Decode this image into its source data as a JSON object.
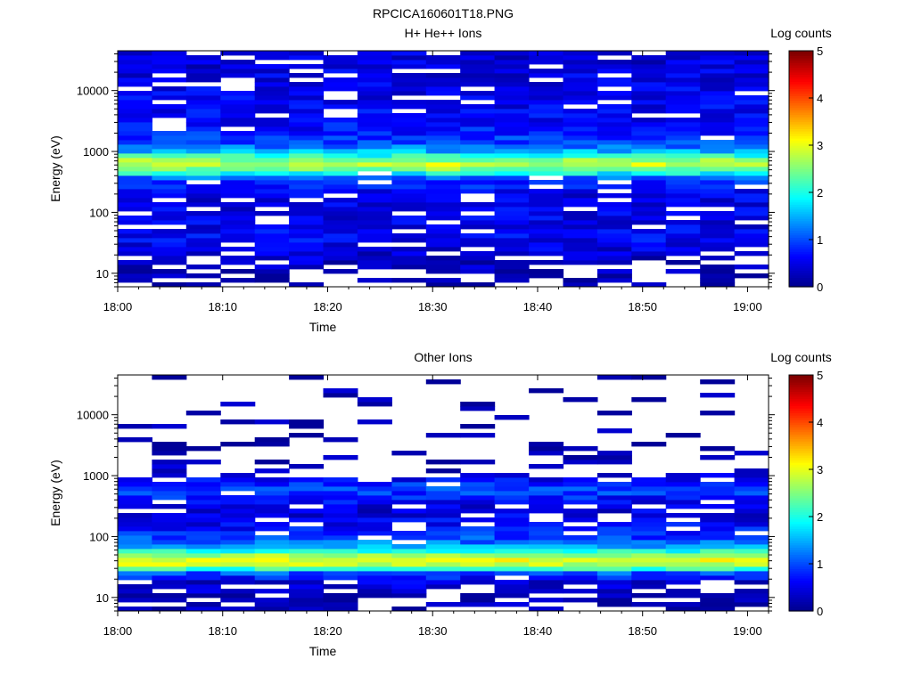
{
  "figure_title": "RPCICA160601T18.PNG",
  "colormap": [
    "#00008f",
    "#0000ff",
    "#007fff",
    "#00ffff",
    "#7fff7f",
    "#ffff00",
    "#ff7f00",
    "#ff0000",
    "#7f0000"
  ],
  "chart_data": [
    {
      "type": "heatmap",
      "title": "H+ He++ Ions",
      "xlabel": "Time",
      "ylabel": "Energy (eV)",
      "colorbar_label": "Log counts",
      "x_range": [
        "18:00",
        "19:02"
      ],
      "y_scale": "log",
      "ylim": [
        6,
        45000
      ],
      "x_ticks": [
        "18:00",
        "18:10",
        "18:20",
        "18:30",
        "18:40",
        "18:50",
        "19:00"
      ],
      "y_ticks": [
        "10",
        "100",
        "1000",
        "10000"
      ],
      "color_range": [
        0,
        5
      ],
      "colorbar_ticks": [
        "0",
        "1",
        "2",
        "3",
        "4",
        "5"
      ],
      "time_columns": 19,
      "energy_profile": [
        {
          "energy": 8,
          "log_counts": 0.1,
          "coverage": 0.5
        },
        {
          "energy": 12,
          "log_counts": 0.2,
          "coverage": 0.6
        },
        {
          "energy": 20,
          "log_counts": 0.4,
          "coverage": 0.8
        },
        {
          "energy": 30,
          "log_counts": 0.5,
          "coverage": 0.9
        },
        {
          "energy": 40,
          "log_counts": 0.6,
          "coverage": 0.9
        },
        {
          "energy": 60,
          "log_counts": 0.5,
          "coverage": 0.85
        },
        {
          "energy": 100,
          "log_counts": 0.5,
          "coverage": 0.85
        },
        {
          "energy": 200,
          "log_counts": 0.5,
          "coverage": 0.85
        },
        {
          "energy": 350,
          "log_counts": 0.9,
          "coverage": 0.9
        },
        {
          "energy": 450,
          "log_counts": 2.0,
          "coverage": 1.0
        },
        {
          "energy": 550,
          "log_counts": 2.7,
          "coverage": 1.0
        },
        {
          "energy": 650,
          "log_counts": 2.9,
          "coverage": 1.0
        },
        {
          "energy": 800,
          "log_counts": 2.3,
          "coverage": 1.0
        },
        {
          "energy": 1000,
          "log_counts": 1.5,
          "coverage": 1.0
        },
        {
          "energy": 1500,
          "log_counts": 0.9,
          "coverage": 0.95
        },
        {
          "energy": 3000,
          "log_counts": 0.6,
          "coverage": 0.9
        },
        {
          "energy": 10000,
          "log_counts": 0.5,
          "coverage": 0.85
        },
        {
          "energy": 40000,
          "log_counts": 0.4,
          "coverage": 0.85
        }
      ]
    },
    {
      "type": "heatmap",
      "title": "Other Ions",
      "xlabel": "Time",
      "ylabel": "Energy (eV)",
      "colorbar_label": "Log counts",
      "x_range": [
        "18:00",
        "19:02"
      ],
      "y_scale": "log",
      "ylim": [
        6,
        45000
      ],
      "x_ticks": [
        "18:00",
        "18:10",
        "18:20",
        "18:30",
        "18:40",
        "18:50",
        "19:00"
      ],
      "y_ticks": [
        "10",
        "100",
        "1000",
        "10000"
      ],
      "color_range": [
        0,
        5
      ],
      "colorbar_ticks": [
        "0",
        "1",
        "2",
        "3",
        "4",
        "5"
      ],
      "time_columns": 19,
      "energy_profile": [
        {
          "energy": 8,
          "log_counts": 0.2,
          "coverage": 0.6
        },
        {
          "energy": 12,
          "log_counts": 0.3,
          "coverage": 0.65
        },
        {
          "energy": 18,
          "log_counts": 0.4,
          "coverage": 0.85
        },
        {
          "energy": 25,
          "log_counts": 1.0,
          "coverage": 1.0
        },
        {
          "energy": 32,
          "log_counts": 2.6,
          "coverage": 1.0
        },
        {
          "energy": 40,
          "log_counts": 3.1,
          "coverage": 1.0
        },
        {
          "energy": 50,
          "log_counts": 2.6,
          "coverage": 1.0
        },
        {
          "energy": 65,
          "log_counts": 1.6,
          "coverage": 1.0
        },
        {
          "energy": 90,
          "log_counts": 1.0,
          "coverage": 0.95
        },
        {
          "energy": 150,
          "log_counts": 0.6,
          "coverage": 0.85
        },
        {
          "energy": 300,
          "log_counts": 0.4,
          "coverage": 0.7
        },
        {
          "energy": 600,
          "log_counts": 1.0,
          "coverage": 1.0
        },
        {
          "energy": 1200,
          "log_counts": 0.2,
          "coverage": 0.3
        },
        {
          "energy": 5000,
          "log_counts": 0.1,
          "coverage": 0.15
        },
        {
          "energy": 30000,
          "log_counts": 0.1,
          "coverage": 0.1
        }
      ]
    }
  ]
}
